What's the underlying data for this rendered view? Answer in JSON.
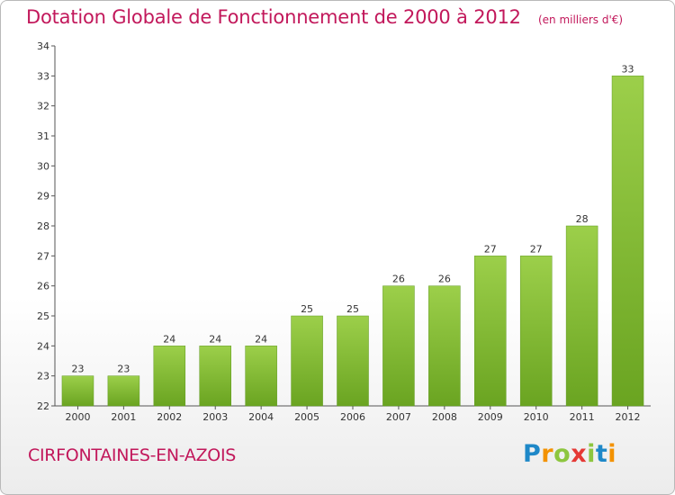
{
  "chart_data": {
    "type": "bar",
    "title": "Dotation Globale de Fonctionnement de 2000 à 2012",
    "subtitle": "(en milliers d'€)",
    "categories": [
      "2000",
      "2001",
      "2002",
      "2003",
      "2004",
      "2005",
      "2006",
      "2007",
      "2008",
      "2009",
      "2010",
      "2011",
      "2012"
    ],
    "values": [
      23,
      23,
      24,
      24,
      24,
      25,
      25,
      26,
      26,
      27,
      27,
      28,
      33
    ],
    "ylim": [
      22,
      34
    ],
    "yticks": [
      22,
      23,
      24,
      25,
      26,
      27,
      28,
      29,
      30,
      31,
      32,
      33,
      34
    ],
    "xlabel": "",
    "ylabel": "",
    "grid": false,
    "bar_color": "#7cb82f",
    "bar_color_light": "#9ccf4a"
  },
  "commune": "CIRFONTAINES-EN-AZOIS",
  "logo": {
    "letters": [
      "P",
      "r",
      "o",
      "x",
      "i",
      "t",
      "i"
    ],
    "colors": [
      "#1e88c8",
      "#f39200",
      "#8dc63f",
      "#e53935",
      "#8dc63f",
      "#1e88c8",
      "#f39200"
    ]
  }
}
